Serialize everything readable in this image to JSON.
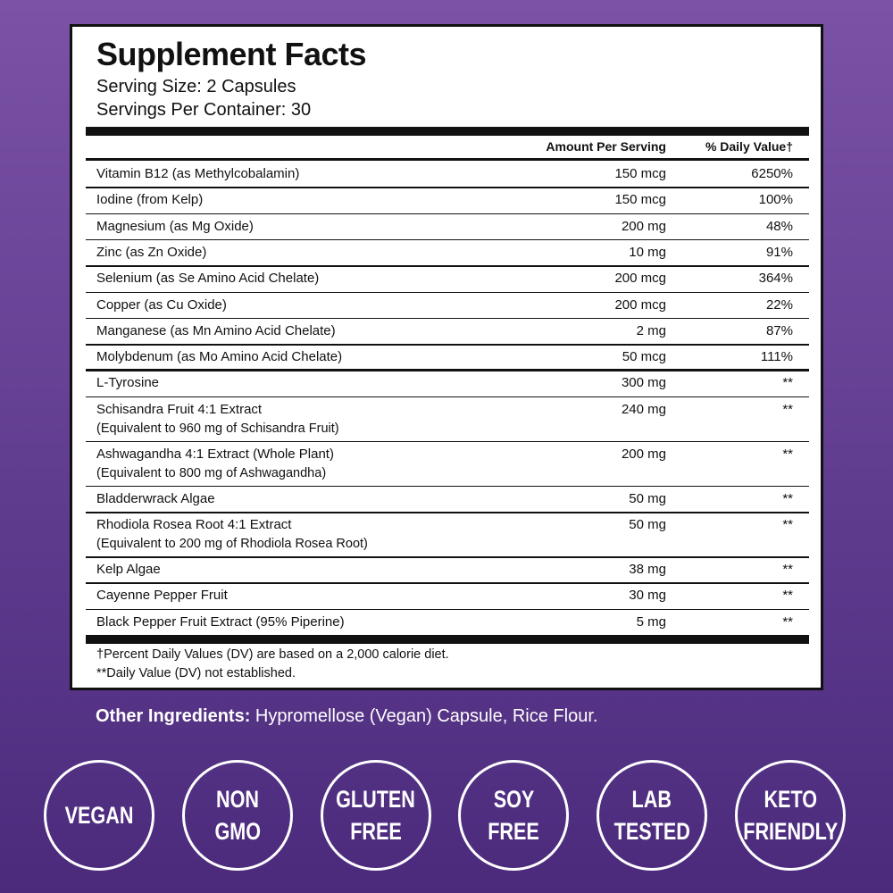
{
  "panel": {
    "title": "Supplement Facts",
    "serving_size": "Serving Size: 2 Capsules",
    "servings_per_container": "Servings Per Container: 30"
  },
  "table": {
    "headers": [
      "Amount Per Serving",
      "% Daily Value†"
    ],
    "groups": [
      {
        "rows": [
          {
            "name": "Vitamin B12 (as Methylcobalamin)",
            "amount": "150 mcg",
            "dv": "6250%"
          },
          {
            "name": "Iodine (from Kelp)",
            "amount": "150 mcg",
            "dv": "100%"
          },
          {
            "name": "Magnesium (as Mg Oxide)",
            "amount": "200 mg",
            "dv": "48%"
          },
          {
            "name": "Zinc (as Zn Oxide)",
            "amount": "10 mg",
            "dv": "91%"
          },
          {
            "name": "Selenium (as Se Amino Acid Chelate)",
            "amount": "200 mcg",
            "dv": "364%"
          },
          {
            "name": "Copper (as Cu Oxide)",
            "amount": "200 mcg",
            "dv": "22%"
          },
          {
            "name": "Manganese (as Mn Amino Acid Chelate)",
            "amount": "2 mg",
            "dv": "87%"
          },
          {
            "name": "Molybdenum (as Mo Amino Acid Chelate)",
            "amount": "50 mcg",
            "dv": "111%"
          }
        ]
      },
      {
        "rows": [
          {
            "name": "L-Tyrosine",
            "amount": "300 mg",
            "dv": "**"
          },
          {
            "name": "Schisandra Fruit 4:1 Extract",
            "note": "(Equivalent to 960 mg of Schisandra Fruit)",
            "amount": "240 mg",
            "dv": "**"
          },
          {
            "name": "Ashwagandha 4:1 Extract (Whole Plant)",
            "note": "(Equivalent to 800 mg of Ashwagandha)",
            "amount": "200 mg",
            "dv": "**"
          },
          {
            "name": "Bladderwrack Algae",
            "amount": "50 mg",
            "dv": "**"
          },
          {
            "name": "Rhodiola Rosea Root 4:1 Extract",
            "note": "(Equivalent to 200 mg of Rhodiola Rosea Root)",
            "amount": "50 mg",
            "dv": "**"
          },
          {
            "name": "Kelp Algae",
            "amount": "38 mg",
            "dv": "**"
          },
          {
            "name": "Cayenne Pepper Fruit",
            "amount": "30 mg",
            "dv": "**"
          },
          {
            "name": "Black Pepper Fruit Extract (95% Piperine)",
            "amount": "5 mg",
            "dv": "**"
          }
        ]
      }
    ]
  },
  "footnotes": [
    "†Percent Daily Values (DV) are based on a 2,000 calorie diet.",
    "**Daily Value (DV) not established."
  ],
  "other_ingredients": {
    "label": "Other Ingredients:",
    "text": "Hypromellose (Vegan) Capsule, Rice Flour."
  },
  "badges": [
    [
      "VEGAN"
    ],
    [
      "NON",
      "GMO"
    ],
    [
      "GLUTEN",
      "FREE"
    ],
    [
      "SOY",
      "FREE"
    ],
    [
      "LAB",
      "TESTED"
    ],
    [
      "KETO",
      "FRIENDLY"
    ]
  ]
}
